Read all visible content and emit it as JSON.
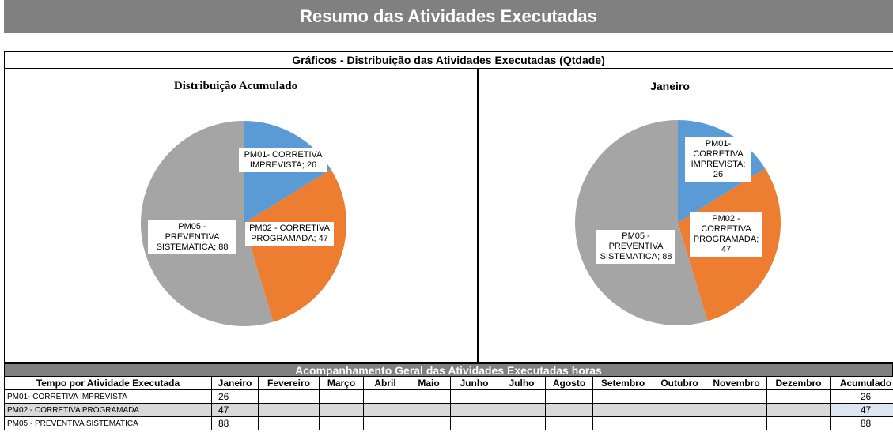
{
  "header": {
    "title": "Resumo das Atividades Executadas"
  },
  "charts_title": "Gráficos - Distribuição das Atividades Executadas (Qtdade)",
  "chart_data": [
    {
      "type": "pie",
      "title": "Distribuição Acumulado",
      "categories": [
        "PM01- CORRETIVA IMPREVISTA",
        "PM02 - CORRETIVA PROGRAMADA",
        "PM05 - PREVENTIVA SISTEMATICA"
      ],
      "values": [
        26,
        47,
        88
      ],
      "value_labels": [
        "PM01- CORRETIVA IMPREVISTA; 26",
        "PM02 - CORRETIVA PROGRAMADA; 47",
        "PM05 - PREVENTIVA SISTEMATICA; 88"
      ],
      "colors": [
        "#5b9bd5",
        "#ed7d31",
        "#a5a5a5"
      ]
    },
    {
      "type": "pie",
      "title": "Janeiro",
      "categories": [
        "PM01- CORRETIVA IMPREVISTA",
        "PM02 - CORRETIVA PROGRAMADA",
        "PM05 - PREVENTIVA SISTEMATICA"
      ],
      "values": [
        26,
        47,
        88
      ],
      "value_labels": [
        "PM01- CORRETIVA IMPREVISTA; 26",
        "PM02 - CORRETIVA PROGRAMADA; 47",
        "PM05 - PREVENTIVA SISTEMATICA; 88"
      ],
      "colors": [
        "#5b9bd5",
        "#ed7d31",
        "#a5a5a5"
      ]
    }
  ],
  "table": {
    "title": "Acompanhamento Geral das Atividades Executadas horas",
    "columns": [
      "Tempo por Atividade Executada",
      "Janeiro",
      "Fevereiro",
      "Março",
      "Abril",
      "Maio",
      "Junho",
      "Julho",
      "Agosto",
      "Setembro",
      "Outubro",
      "Novembro",
      "Dezembro",
      "Acumulado"
    ],
    "rows": [
      {
        "name": "PM01- CORRETIVA IMPREVISTA",
        "values": [
          26
        ],
        "total": 26
      },
      {
        "name": "PM02 - CORRETIVA PROGRAMADA",
        "values": [
          47
        ],
        "total": 47
      },
      {
        "name": "PM05 - PREVENTIVA SISTEMATICA",
        "values": [
          88
        ],
        "total": 88
      }
    ]
  }
}
